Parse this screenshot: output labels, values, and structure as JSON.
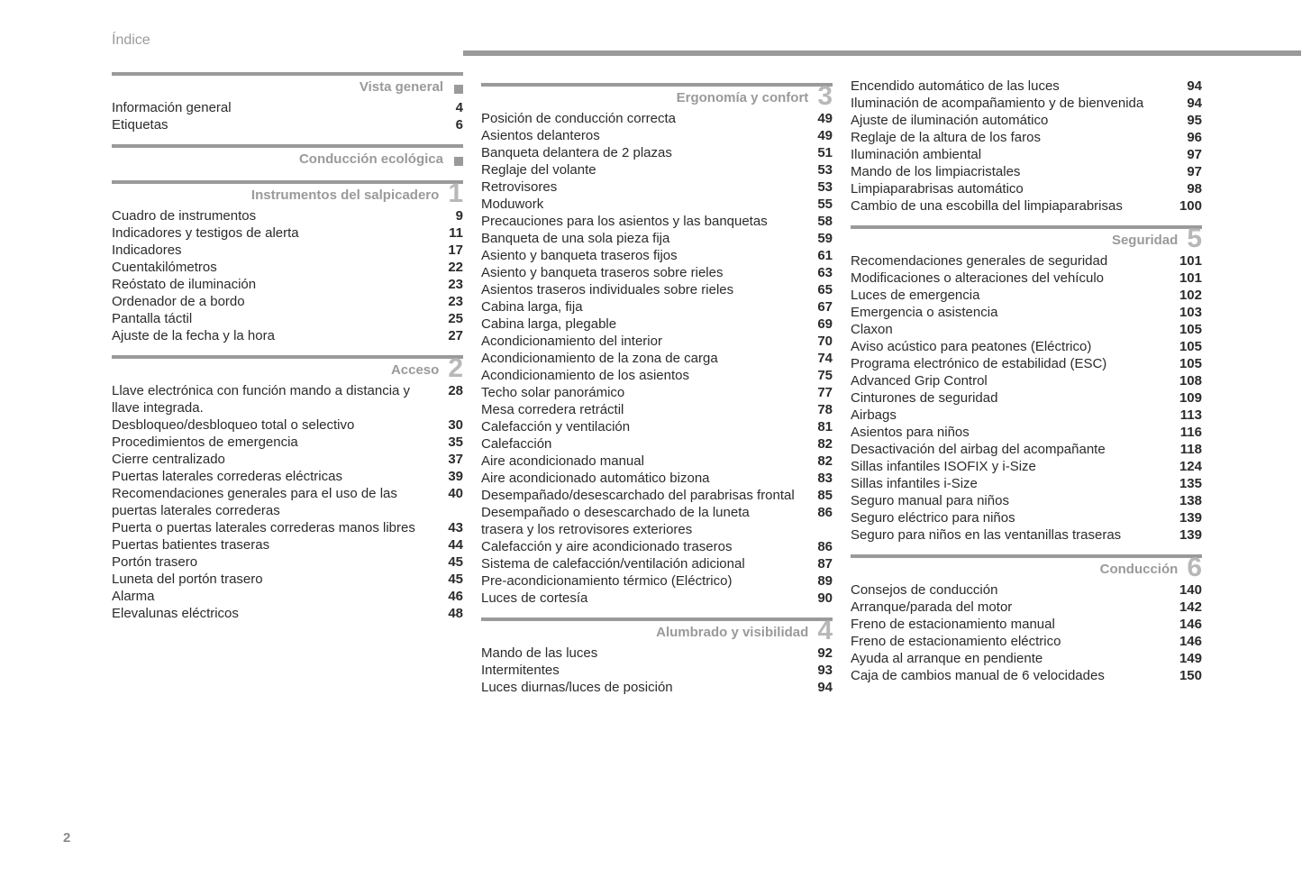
{
  "doc_title": "Índice",
  "page_number": "2",
  "colors": {
    "rule": "#9a9a9a",
    "heading": "#9a9a9a",
    "chapter_number": "#b8b8b8",
    "text": "#2b2b2b",
    "background": "#ffffff"
  },
  "columns": [
    {
      "sections": [
        {
          "title": "Vista general",
          "number": "",
          "marker": "square",
          "entries": [
            {
              "label": "Información general",
              "page": "4"
            },
            {
              "label": "Etiquetas",
              "page": "6"
            }
          ]
        },
        {
          "title": "Conducción ecológica",
          "number": "",
          "marker": "square",
          "entries": []
        },
        {
          "title": "Instrumentos del salpicadero",
          "number": "1",
          "marker": "",
          "entries": [
            {
              "label": "Cuadro de instrumentos",
              "page": "9"
            },
            {
              "label": "Indicadores y testigos de alerta",
              "page": "11"
            },
            {
              "label": "Indicadores",
              "page": "17"
            },
            {
              "label": "Cuentakilómetros",
              "page": "22"
            },
            {
              "label": "Reóstato de iluminación",
              "page": "23"
            },
            {
              "label": "Ordenador de a bordo",
              "page": "23"
            },
            {
              "label": "Pantalla táctil",
              "page": "25"
            },
            {
              "label": "Ajuste de la fecha y la hora",
              "page": "27"
            }
          ]
        },
        {
          "title": "Acceso",
          "number": "2",
          "marker": "",
          "entries": [
            {
              "label": "Llave electrónica con función mando a distancia y llave integrada.",
              "page": "28"
            },
            {
              "label": "Desbloqueo/desbloqueo total o selectivo",
              "page": "30"
            },
            {
              "label": "Procedimientos de emergencia",
              "page": "35"
            },
            {
              "label": "Cierre centralizado",
              "page": "37"
            },
            {
              "label": "Puertas laterales correderas eléctricas",
              "page": "39"
            },
            {
              "label": "Recomendaciones generales para el uso de las puertas laterales correderas",
              "page": "40"
            },
            {
              "label": "Puerta o puertas laterales correderas manos libres",
              "page": "43"
            },
            {
              "label": "Puertas batientes traseras",
              "page": "44"
            },
            {
              "label": "Portón trasero",
              "page": "45"
            },
            {
              "label": "Luneta del portón trasero",
              "page": "45"
            },
            {
              "label": "Alarma",
              "page": "46"
            },
            {
              "label": "Elevalunas eléctricos",
              "page": "48"
            }
          ]
        }
      ]
    },
    {
      "sections": [
        {
          "title": "Ergonomía y confort",
          "number": "3",
          "marker": "",
          "entries": [
            {
              "label": "Posición de conducción correcta",
              "page": "49"
            },
            {
              "label": "Asientos delanteros",
              "page": "49"
            },
            {
              "label": "Banqueta delantera de 2 plazas",
              "page": "51"
            },
            {
              "label": "Reglaje del volante",
              "page": "53"
            },
            {
              "label": "Retrovisores",
              "page": "53"
            },
            {
              "label": "Moduwork",
              "page": "55"
            },
            {
              "label": "Precauciones para los asientos y las banquetas",
              "page": "58"
            },
            {
              "label": "Banqueta de una sola pieza fija",
              "page": "59"
            },
            {
              "label": "Asiento y banqueta traseros fijos",
              "page": "61"
            },
            {
              "label": "Asiento y banqueta traseros sobre rieles",
              "page": "63"
            },
            {
              "label": "Asientos traseros individuales sobre rieles",
              "page": "65"
            },
            {
              "label": "Cabina larga, fija",
              "page": "67"
            },
            {
              "label": "Cabina larga, plegable",
              "page": "69"
            },
            {
              "label": "Acondicionamiento del interior",
              "page": "70"
            },
            {
              "label": "Acondicionamiento de la zona de carga",
              "page": "74"
            },
            {
              "label": "Acondicionamiento de los asientos",
              "page": "75"
            },
            {
              "label": "Techo solar panorámico",
              "page": "77"
            },
            {
              "label": "Mesa corredera retráctil",
              "page": "78"
            },
            {
              "label": "Calefacción y ventilación",
              "page": "81"
            },
            {
              "label": "Calefacción",
              "page": "82"
            },
            {
              "label": "Aire acondicionado manual",
              "page": "82"
            },
            {
              "label": "Aire acondicionado automático bizona",
              "page": "83"
            },
            {
              "label": "Desempañado/desescarchado del parabrisas frontal",
              "page": "85"
            },
            {
              "label": "Desempañado o desescarchado de la luneta trasera y los retrovisores exteriores",
              "page": "86"
            },
            {
              "label": "Calefacción y aire acondicionado traseros",
              "page": "86"
            },
            {
              "label": "Sistema de calefacción/ventilación adicional",
              "page": "87"
            },
            {
              "label": "Pre-acondicionamiento térmico (Eléctrico)",
              "page": "89"
            },
            {
              "label": "Luces de cortesía",
              "page": "90"
            }
          ]
        },
        {
          "title": "Alumbrado y visibilidad",
          "number": "4",
          "marker": "",
          "entries": [
            {
              "label": "Mando de las luces",
              "page": "92"
            },
            {
              "label": "Intermitentes",
              "page": "93"
            },
            {
              "label": "Luces diurnas/luces de posición",
              "page": "94"
            }
          ]
        }
      ]
    },
    {
      "sections": [
        {
          "title": "",
          "number": "",
          "marker": "continuation",
          "entries": [
            {
              "label": "Encendido automático de las luces",
              "page": "94"
            },
            {
              "label": "Iluminación de acompañamiento y de bienvenida",
              "page": "94"
            },
            {
              "label": "Ajuste de iluminación automático",
              "page": "95"
            },
            {
              "label": "Reglaje de la altura de los faros",
              "page": "96"
            },
            {
              "label": "Iluminación ambiental",
              "page": "97"
            },
            {
              "label": "Mando de los limpiacristales",
              "page": "97"
            },
            {
              "label": "Limpiaparabrisas automático",
              "page": "98"
            },
            {
              "label": "Cambio de una escobilla del limpiaparabrisas",
              "page": "100"
            }
          ]
        },
        {
          "title": "Seguridad",
          "number": "5",
          "marker": "",
          "entries": [
            {
              "label": "Recomendaciones generales de seguridad",
              "page": "101"
            },
            {
              "label": "Modificaciones o alteraciones del vehículo",
              "page": "101"
            },
            {
              "label": "Luces de emergencia",
              "page": "102"
            },
            {
              "label": "Emergencia o asistencia",
              "page": "103"
            },
            {
              "label": "Claxon",
              "page": "105"
            },
            {
              "label": "Aviso acústico para peatones (Eléctrico)",
              "page": "105"
            },
            {
              "label": "Programa electrónico de estabilidad (ESC)",
              "page": "105"
            },
            {
              "label": "Advanced Grip Control",
              "page": "108"
            },
            {
              "label": "Cinturones de seguridad",
              "page": "109"
            },
            {
              "label": "Airbags",
              "page": "113"
            },
            {
              "label": "Asientos para niños",
              "page": "116"
            },
            {
              "label": "Desactivación del airbag del acompañante",
              "page": "118"
            },
            {
              "label": "Sillas infantiles ISOFIX y i-Size",
              "page": "124"
            },
            {
              "label": "Sillas infantiles i-Size",
              "page": "135"
            },
            {
              "label": "Seguro manual para niños",
              "page": "138"
            },
            {
              "label": "Seguro eléctrico para niños",
              "page": "139"
            },
            {
              "label": "Seguro para niños en las ventanillas traseras",
              "page": "139"
            }
          ]
        },
        {
          "title": "Conducción",
          "number": "6",
          "marker": "",
          "entries": [
            {
              "label": "Consejos de conducción",
              "page": "140"
            },
            {
              "label": "Arranque/parada del motor",
              "page": "142"
            },
            {
              "label": "Freno de estacionamiento manual",
              "page": "146"
            },
            {
              "label": "Freno de estacionamiento eléctrico",
              "page": "146"
            },
            {
              "label": "Ayuda al arranque en pendiente",
              "page": "149"
            },
            {
              "label": "Caja de cambios manual de 6 velocidades",
              "page": "150"
            }
          ]
        }
      ]
    }
  ]
}
